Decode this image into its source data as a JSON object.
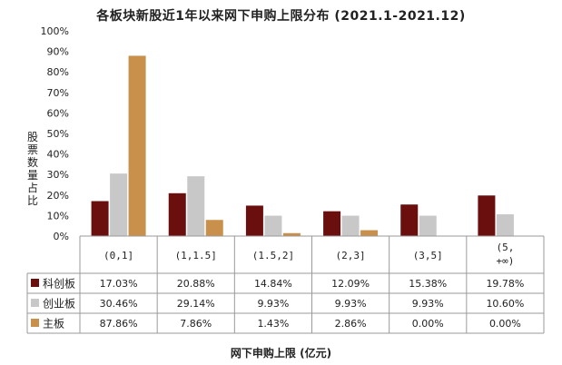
{
  "chart_data": {
    "type": "bar",
    "title": "各板块新股近1年以来网下申购上限分布 (2021.1-2021.12)",
    "xlabel": "网下申购上限 (亿元)",
    "ylabel": "股票数量占比",
    "ylim": [
      0,
      100
    ],
    "yticks": [
      "0%",
      "10%",
      "20%",
      "30%",
      "40%",
      "50%",
      "60%",
      "70%",
      "80%",
      "90%",
      "100%"
    ],
    "categories": [
      "(0,1]",
      "(1,1.5]",
      "(1.5,2]",
      "(2,3]",
      "(3,5]",
      "(5, +∞)"
    ],
    "series": [
      {
        "name": "科创板",
        "color": "#6b0e0e",
        "values": [
          17.03,
          20.88,
          14.84,
          12.09,
          15.38,
          19.78
        ],
        "labels": [
          "17.03%",
          "20.88%",
          "14.84%",
          "12.09%",
          "15.38%",
          "19.78%"
        ]
      },
      {
        "name": "创业板",
        "color": "#c8c8c8",
        "values": [
          30.46,
          29.14,
          9.93,
          9.93,
          9.93,
          10.6
        ],
        "labels": [
          "30.46%",
          "29.14%",
          "9.93%",
          "9.93%",
          "9.93%",
          "10.60%"
        ]
      },
      {
        "name": "主板",
        "color": "#c8904a",
        "values": [
          87.86,
          7.86,
          1.43,
          2.86,
          0.0,
          0.0
        ],
        "labels": [
          "87.86%",
          "7.86%",
          "1.43%",
          "2.86%",
          "0.00%",
          "0.00%"
        ]
      }
    ],
    "legend": "data-table-left",
    "grid": false
  }
}
